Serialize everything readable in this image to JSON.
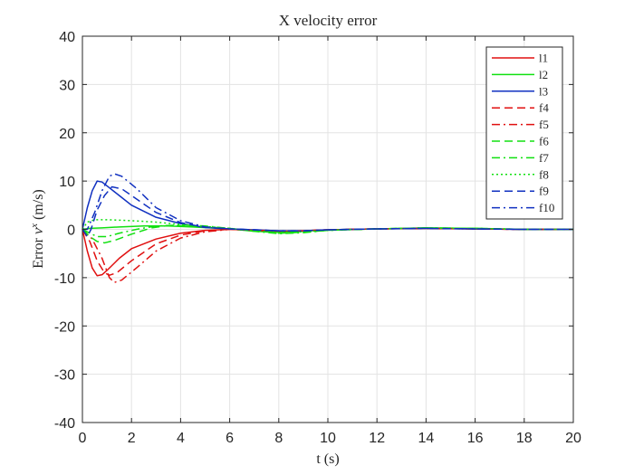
{
  "chart_data": {
    "type": "line",
    "title": "X velocity error",
    "xlabel": "t (s)",
    "ylabel": {
      "prefix": "Error ",
      "var": "v",
      "sup": "x",
      "suffix": " (m/s)"
    },
    "xlim": [
      0,
      20
    ],
    "ylim": [
      -40,
      40
    ],
    "xticks": [
      0,
      2,
      4,
      6,
      8,
      10,
      12,
      14,
      16,
      18,
      20
    ],
    "yticks": [
      -40,
      -30,
      -20,
      -10,
      0,
      10,
      20,
      30,
      40
    ],
    "grid": true,
    "legend_position": "top-right",
    "series": [
      {
        "name": "l1",
        "color": "#e01010",
        "dash": "solid",
        "points": [
          [
            0,
            0
          ],
          [
            0.2,
            -4.5
          ],
          [
            0.4,
            -8
          ],
          [
            0.6,
            -9.6
          ],
          [
            0.8,
            -9.4
          ],
          [
            1.0,
            -8.5
          ],
          [
            1.5,
            -6
          ],
          [
            2,
            -4
          ],
          [
            3,
            -2
          ],
          [
            4,
            -0.8
          ],
          [
            5,
            -0.2
          ],
          [
            6,
            0
          ],
          [
            7,
            -0.2
          ],
          [
            8,
            -0.4
          ],
          [
            9,
            -0.3
          ],
          [
            10,
            -0.1
          ],
          [
            12,
            0.1
          ],
          [
            14,
            0.2
          ],
          [
            16,
            0.1
          ],
          [
            18,
            0
          ],
          [
            20,
            0
          ]
        ]
      },
      {
        "name": "l2",
        "color": "#10e010",
        "dash": "solid",
        "points": [
          [
            0,
            0
          ],
          [
            0.3,
            0.2
          ],
          [
            0.8,
            0.3
          ],
          [
            1.5,
            0.5
          ],
          [
            2.5,
            0.7
          ],
          [
            3.5,
            0.7
          ],
          [
            4.5,
            0.5
          ],
          [
            6,
            0.1
          ],
          [
            7,
            -0.4
          ],
          [
            8,
            -0.6
          ],
          [
            9,
            -0.4
          ],
          [
            10,
            -0.1
          ],
          [
            12,
            0.1
          ],
          [
            14,
            0.3
          ],
          [
            16,
            0.2
          ],
          [
            18,
            0
          ],
          [
            20,
            0
          ]
        ]
      },
      {
        "name": "l3",
        "color": "#1030c0",
        "dash": "solid",
        "points": [
          [
            0,
            0
          ],
          [
            0.2,
            4.5
          ],
          [
            0.4,
            8
          ],
          [
            0.6,
            10
          ],
          [
            0.8,
            9.8
          ],
          [
            1.0,
            9
          ],
          [
            1.5,
            7
          ],
          [
            2,
            5
          ],
          [
            3,
            2.5
          ],
          [
            4,
            1.2
          ],
          [
            5,
            0.4
          ],
          [
            6,
            0.1
          ],
          [
            7,
            -0.1
          ],
          [
            8,
            -0.3
          ],
          [
            9,
            -0.3
          ],
          [
            10,
            -0.1
          ],
          [
            12,
            0.1
          ],
          [
            14,
            0.2
          ],
          [
            16,
            0.1
          ],
          [
            18,
            0
          ],
          [
            20,
            0
          ]
        ]
      },
      {
        "name": "f4",
        "color": "#e01010",
        "dash": "dashed",
        "points": [
          [
            0,
            0
          ],
          [
            0.3,
            -2.5
          ],
          [
            0.6,
            -6.5
          ],
          [
            0.9,
            -9
          ],
          [
            1.1,
            -9.5
          ],
          [
            1.4,
            -9
          ],
          [
            2,
            -6.5
          ],
          [
            3,
            -3
          ],
          [
            4,
            -1.2
          ],
          [
            5,
            -0.3
          ],
          [
            6,
            0
          ],
          [
            7,
            -0.2
          ],
          [
            8,
            -0.4
          ],
          [
            9,
            -0.3
          ],
          [
            10,
            -0.1
          ],
          [
            12,
            0.1
          ],
          [
            14,
            0.2
          ],
          [
            16,
            0.1
          ],
          [
            18,
            0
          ],
          [
            20,
            0
          ]
        ]
      },
      {
        "name": "f5",
        "color": "#e01010",
        "dash": "dashdot",
        "points": [
          [
            0,
            0
          ],
          [
            0.4,
            -2
          ],
          [
            0.8,
            -6
          ],
          [
            1.1,
            -10
          ],
          [
            1.3,
            -11
          ],
          [
            1.6,
            -10.5
          ],
          [
            2.2,
            -8
          ],
          [
            3,
            -4.5
          ],
          [
            4,
            -1.8
          ],
          [
            5,
            -0.5
          ],
          [
            6,
            0
          ],
          [
            7,
            -0.2
          ],
          [
            8,
            -0.4
          ],
          [
            9,
            -0.3
          ],
          [
            10,
            -0.1
          ],
          [
            12,
            0.1
          ],
          [
            14,
            0.2
          ],
          [
            16,
            0.1
          ],
          [
            18,
            0
          ],
          [
            20,
            0
          ]
        ]
      },
      {
        "name": "f6",
        "color": "#10e010",
        "dash": "dashed",
        "points": [
          [
            0,
            0
          ],
          [
            0.3,
            -1.5
          ],
          [
            0.6,
            -2.5
          ],
          [
            0.9,
            -2.8
          ],
          [
            1.3,
            -2.3
          ],
          [
            2,
            -1
          ],
          [
            2.8,
            0.3
          ],
          [
            3.5,
            0.8
          ],
          [
            4.5,
            0.7
          ],
          [
            6,
            0.2
          ],
          [
            7,
            -0.3
          ],
          [
            8,
            -0.8
          ],
          [
            9,
            -0.6
          ],
          [
            10,
            -0.2
          ],
          [
            12,
            0.1
          ],
          [
            14,
            0.3
          ],
          [
            16,
            0.2
          ],
          [
            18,
            0
          ],
          [
            20,
            0
          ]
        ]
      },
      {
        "name": "f7",
        "color": "#10e010",
        "dash": "dashdot",
        "points": [
          [
            0,
            0
          ],
          [
            0.3,
            -0.8
          ],
          [
            0.6,
            -1.5
          ],
          [
            1.0,
            -1.5
          ],
          [
            1.5,
            -0.8
          ],
          [
            2.2,
            0
          ],
          [
            3,
            0.7
          ],
          [
            4,
            0.9
          ],
          [
            5,
            0.7
          ],
          [
            6,
            0.2
          ],
          [
            7,
            -0.4
          ],
          [
            8,
            -0.9
          ],
          [
            9,
            -0.7
          ],
          [
            10,
            -0.2
          ],
          [
            12,
            0.1
          ],
          [
            14,
            0.3
          ],
          [
            16,
            0.2
          ],
          [
            18,
            0
          ],
          [
            20,
            0
          ]
        ]
      },
      {
        "name": "f8",
        "color": "#10e010",
        "dash": "dotted",
        "points": [
          [
            0,
            0
          ],
          [
            0.2,
            1.5
          ],
          [
            0.5,
            2
          ],
          [
            1.0,
            2
          ],
          [
            2,
            1.8
          ],
          [
            3,
            1.5
          ],
          [
            4,
            1
          ],
          [
            5,
            0.6
          ],
          [
            6,
            0.2
          ],
          [
            7,
            -0.3
          ],
          [
            8,
            -0.6
          ],
          [
            9,
            -0.5
          ],
          [
            10,
            -0.2
          ],
          [
            12,
            0.1
          ],
          [
            14,
            0.3
          ],
          [
            16,
            0.2
          ],
          [
            18,
            0
          ],
          [
            20,
            0
          ]
        ]
      },
      {
        "name": "f9",
        "color": "#1030c0",
        "dash": "dashed",
        "points": [
          [
            0,
            0
          ],
          [
            0.2,
            -1.5
          ],
          [
            0.35,
            0
          ],
          [
            0.6,
            4
          ],
          [
            0.9,
            7
          ],
          [
            1.2,
            8.8
          ],
          [
            1.6,
            8.4
          ],
          [
            2,
            7
          ],
          [
            3,
            3.5
          ],
          [
            4,
            1.4
          ],
          [
            5,
            0.4
          ],
          [
            6,
            0.1
          ],
          [
            7,
            -0.1
          ],
          [
            8,
            -0.3
          ],
          [
            9,
            -0.3
          ],
          [
            10,
            -0.1
          ],
          [
            12,
            0.1
          ],
          [
            14,
            0.2
          ],
          [
            16,
            0.1
          ],
          [
            18,
            0
          ],
          [
            20,
            0
          ]
        ]
      },
      {
        "name": "f10",
        "color": "#1030c0",
        "dash": "dashdot",
        "points": [
          [
            0,
            0
          ],
          [
            0.2,
            0
          ],
          [
            0.5,
            3.5
          ],
          [
            0.8,
            8
          ],
          [
            1.1,
            11
          ],
          [
            1.3,
            11.5
          ],
          [
            1.6,
            11
          ],
          [
            2.2,
            8.5
          ],
          [
            3,
            4.5
          ],
          [
            4,
            1.8
          ],
          [
            5,
            0.5
          ],
          [
            6,
            0.1
          ],
          [
            7,
            -0.1
          ],
          [
            8,
            -0.3
          ],
          [
            9,
            -0.3
          ],
          [
            10,
            -0.1
          ],
          [
            12,
            0.1
          ],
          [
            14,
            0.2
          ],
          [
            16,
            0.1
          ],
          [
            18,
            0
          ],
          [
            20,
            0
          ]
        ]
      }
    ]
  }
}
